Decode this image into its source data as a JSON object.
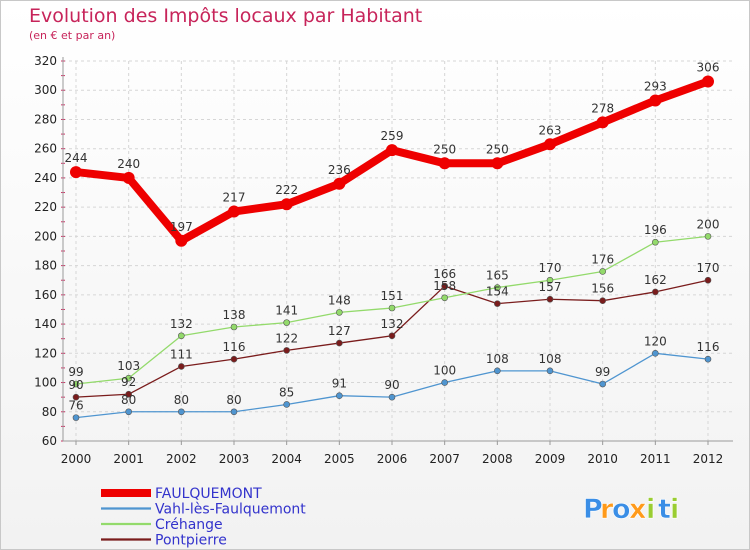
{
  "chart_data": {
    "type": "line",
    "title": "Evolution des Impôts locaux par Habitant",
    "subtitle": "(en € et par an)",
    "xlabel": "",
    "ylabel": "",
    "ylim": [
      60,
      320
    ],
    "yticks": [
      60,
      80,
      100,
      120,
      140,
      160,
      180,
      200,
      220,
      240,
      260,
      280,
      300,
      320
    ],
    "categories": [
      "2000",
      "2001",
      "2002",
      "2003",
      "2004",
      "2005",
      "2006",
      "2007",
      "2008",
      "2009",
      "2010",
      "2011",
      "2012"
    ],
    "grid": true,
    "legend_position": "bottom-left",
    "series": [
      {
        "name": "FAULQUEMONT",
        "color": "#ee0000",
        "values": [
          244,
          240,
          197,
          217,
          222,
          236,
          259,
          250,
          250,
          263,
          278,
          293,
          306
        ]
      },
      {
        "name": "Vahl-lès-Faulquemont",
        "color": "#4f95d0",
        "values": [
          76,
          80,
          80,
          80,
          85,
          91,
          90,
          100,
          108,
          108,
          99,
          120,
          116
        ]
      },
      {
        "name": "Créhange",
        "color": "#93da6b",
        "values": [
          99,
          103,
          132,
          138,
          141,
          148,
          151,
          158,
          165,
          170,
          176,
          196,
          200
        ]
      },
      {
        "name": "Pontpierre",
        "color": "#7a1c1c",
        "values": [
          90,
          92,
          111,
          116,
          122,
          127,
          132,
          166,
          154,
          157,
          156,
          162,
          170
        ]
      }
    ]
  },
  "logo": {
    "letters": [
      "P",
      "r",
      "o",
      "x",
      "i",
      "t",
      "i"
    ],
    "colors": [
      "#3a8ee6",
      "#ff9a1a",
      "#3a8ee6",
      "#ff9a1a",
      "#9acd32",
      "#3a8ee6",
      "#9acd32"
    ]
  }
}
